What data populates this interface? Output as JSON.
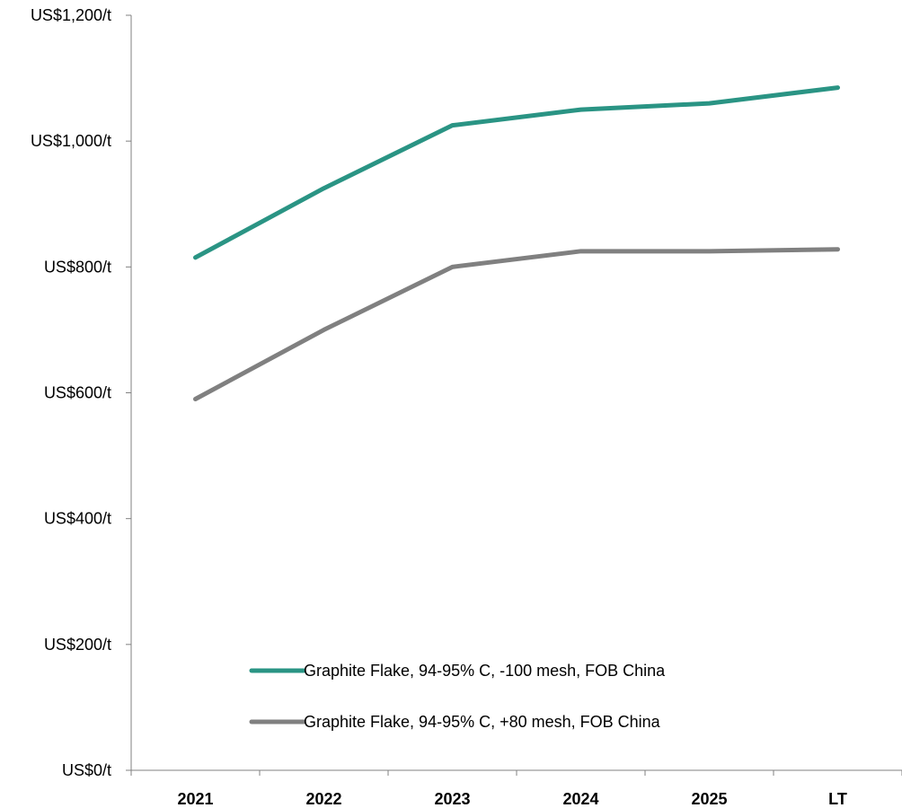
{
  "chart_data": {
    "type": "line",
    "categories": [
      "2021",
      "2022",
      "2023",
      "2024",
      "2025",
      "LT"
    ],
    "y_tick_labels": [
      "US$0/t",
      "US$200/t",
      "US$400/t",
      "US$600/t",
      "US$800/t",
      "US$1,000/t",
      "US$1,200/t"
    ],
    "y_tick_values": [
      0,
      200,
      400,
      600,
      800,
      1000,
      1200
    ],
    "ylim": [
      0,
      1200
    ],
    "grid": false,
    "legend_position": "bottom-left",
    "series": [
      {
        "name": "Graphite Flake, 94-95% C, -100 mesh, FOB China",
        "color": "#2a9484",
        "values": [
          815,
          925,
          1025,
          1050,
          1060,
          1085
        ]
      },
      {
        "name": "Graphite Flake, 94-95% C, +80 mesh, FOB China",
        "color": "#808080",
        "values": [
          590,
          700,
          800,
          825,
          825,
          828
        ]
      }
    ]
  }
}
